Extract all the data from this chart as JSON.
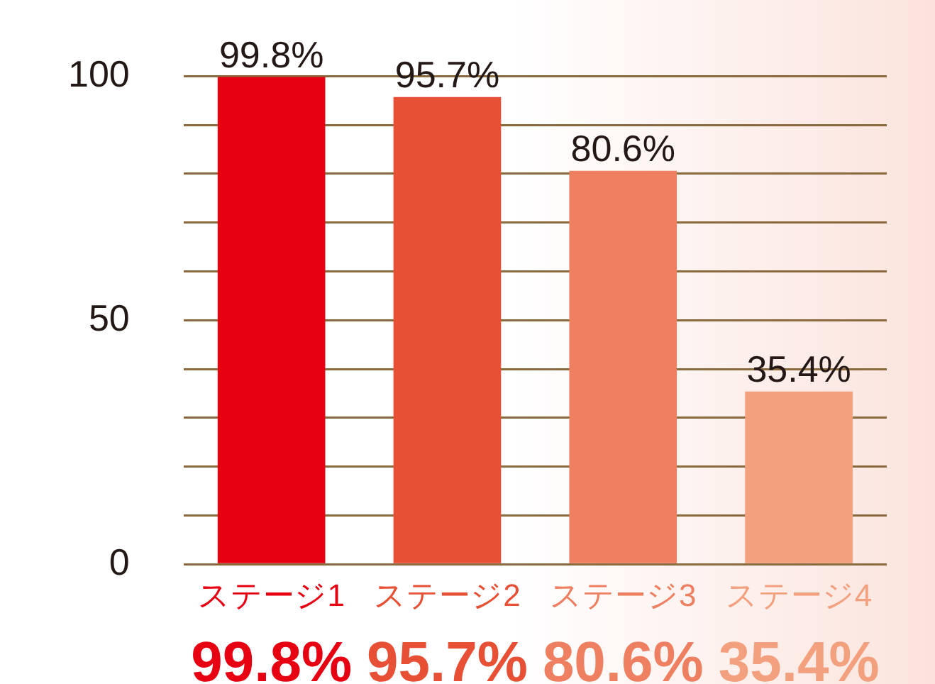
{
  "chart_data": {
    "type": "bar",
    "categories": [
      "ステージ1",
      "ステージ2",
      "ステージ3",
      "ステージ4"
    ],
    "values": [
      99.8,
      95.7,
      80.6,
      35.4
    ],
    "colors": [
      "#e60012",
      "#e85035",
      "#ee7f60",
      "#f3a07f"
    ],
    "value_labels": [
      "99.8%",
      "95.7%",
      "80.6%",
      "35.4%"
    ],
    "ylim": [
      0,
      100
    ],
    "yticks": [
      0,
      {
        "value": 10,
        "label": null
      },
      {
        "value": 20,
        "label": null
      },
      {
        "value": 30,
        "label": null
      },
      {
        "value": 40,
        "label": null
      },
      50,
      {
        "value": 60,
        "label": null
      },
      {
        "value": 70,
        "label": null
      },
      {
        "value": 80,
        "label": null
      },
      {
        "value": 90,
        "label": null
      },
      100
    ],
    "grid": "y",
    "legend": false
  }
}
